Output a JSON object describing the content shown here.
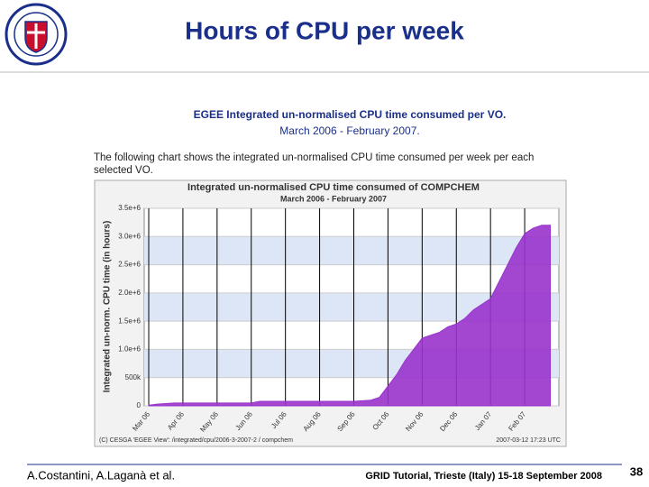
{
  "slide_title": "Hours of CPU per week",
  "heading": "EGEE Integrated un-normalised CPU time consumed per VO.",
  "period": "March 2006 - February 2007.",
  "description": "The following chart shows the integrated un-normalised CPU time consumed per week per each selected VO.",
  "footer": {
    "authors": "A.Costantini, A.Laganà et al.",
    "event": "GRID Tutorial, Trieste (Italy) 15-18 September 2008",
    "page": "38"
  },
  "chart_data": {
    "type": "area",
    "title": "Integrated un-normalised CPU time consumed of COMPCHEM",
    "subtitle": "March 2006 - February 2007",
    "y_label": "Integrated un-norm. CPU time (in hours)",
    "credit": "(C) CESGA 'EGEE View': /integrated/cpu/2006-3-2007-2 / compchem",
    "timestamp": "2007-03-12 17:23 UTC",
    "color": "#9933cc",
    "categories": [
      "Mar 06",
      null,
      null,
      null,
      "Apr 06",
      null,
      null,
      null,
      "May 06",
      null,
      null,
      null,
      "Jun 06",
      null,
      null,
      null,
      "Jul 06",
      null,
      null,
      null,
      "Aug 06",
      null,
      null,
      null,
      "Sep 06",
      null,
      null,
      null,
      "Oct 06",
      null,
      null,
      null,
      "Nov 06",
      null,
      null,
      null,
      "Dec 06",
      null,
      null,
      null,
      "Jan 07",
      null,
      null,
      null,
      "Feb 07",
      null,
      null,
      null
    ],
    "values": [
      10000,
      30000,
      40000,
      50000,
      50000,
      50000,
      50000,
      50000,
      50000,
      50000,
      50000,
      50000,
      50000,
      80000,
      80000,
      80000,
      80000,
      80000,
      80000,
      80000,
      80000,
      80000,
      80000,
      80000,
      80000,
      90000,
      100000,
      150000,
      350000,
      550000,
      800000,
      1000000,
      1200000,
      1250000,
      1300000,
      1400000,
      1450000,
      1550000,
      1700000,
      1800000,
      1900000,
      2200000,
      2500000,
      2800000,
      3050000,
      3150000,
      3200000,
      3200000
    ],
    "ylim": [
      0,
      3500000
    ],
    "yticks": [
      0,
      {
        "value": 500000,
        "label": "500k"
      },
      {
        "value": 1000000,
        "label": "1.0e+6"
      },
      {
        "value": 1500000,
        "label": "1.5e+6"
      },
      {
        "value": 2000000,
        "label": "2.0e+6"
      },
      {
        "value": 2500000,
        "label": "2.5e+6"
      },
      {
        "value": 3000000,
        "label": "3.0e+6"
      },
      {
        "value": 3500000,
        "label": "3.5e+6"
      }
    ],
    "bands": true,
    "month_lines": true
  }
}
